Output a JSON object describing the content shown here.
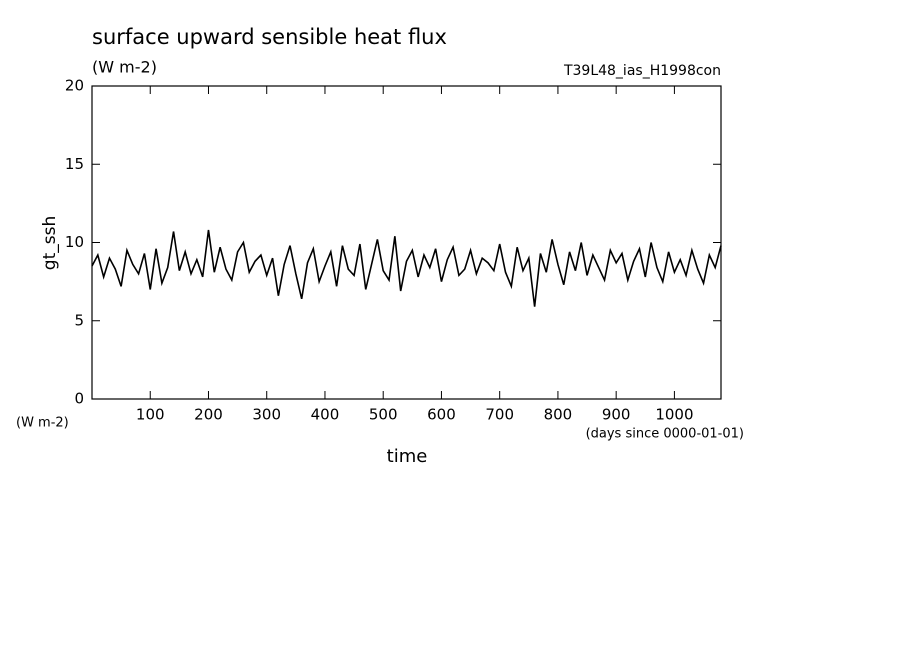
{
  "chart_data": {
    "type": "line",
    "title": "surface upward sensible heat flux",
    "subtitle": "(W m-2)",
    "annotation": "T39L48_ias_H1998con",
    "ylabel": "gt_ssh",
    "xlabel": "time",
    "xunits": "(days since 0000-01-01)",
    "yunits": "(W m-2)",
    "xlim": [
      0,
      1080
    ],
    "ylim": [
      0,
      20
    ],
    "xticks": [
      100,
      200,
      300,
      400,
      500,
      600,
      700,
      800,
      900,
      1000
    ],
    "yticks": [
      0,
      5,
      10,
      15,
      20
    ],
    "series": [
      {
        "color": "#000000",
        "x": [
          0,
          10,
          20,
          30,
          40,
          50,
          60,
          70,
          80,
          90,
          100,
          110,
          120,
          130,
          140,
          150,
          160,
          170,
          180,
          190,
          200,
          210,
          220,
          230,
          240,
          250,
          260,
          270,
          280,
          290,
          300,
          310,
          320,
          330,
          340,
          350,
          360,
          370,
          380,
          390,
          400,
          410,
          420,
          430,
          440,
          450,
          460,
          470,
          480,
          490,
          500,
          510,
          520,
          530,
          540,
          550,
          560,
          570,
          580,
          590,
          600,
          610,
          620,
          630,
          640,
          650,
          660,
          670,
          680,
          690,
          700,
          710,
          720,
          730,
          740,
          750,
          760,
          770,
          780,
          790,
          800,
          810,
          820,
          830,
          840,
          850,
          860,
          870,
          880,
          890,
          900,
          910,
          920,
          930,
          940,
          950,
          960,
          970,
          980,
          990,
          1000,
          1010,
          1020,
          1030,
          1040,
          1050,
          1060,
          1070,
          1080
        ],
        "values": [
          8.5,
          9.2,
          7.8,
          9.0,
          8.3,
          7.2,
          9.5,
          8.6,
          8.0,
          9.3,
          7.0,
          9.6,
          7.4,
          8.4,
          10.7,
          8.2,
          9.4,
          8.0,
          8.9,
          7.8,
          10.8,
          8.1,
          9.7,
          8.3,
          7.6,
          9.4,
          10.0,
          8.1,
          8.8,
          9.2,
          7.9,
          9.0,
          6.6,
          8.6,
          9.8,
          8.0,
          6.4,
          8.7,
          9.6,
          7.5,
          8.5,
          9.4,
          7.2,
          9.8,
          8.3,
          7.9,
          9.9,
          7.0,
          8.6,
          10.2,
          8.2,
          7.6,
          10.4,
          6.9,
          8.8,
          9.5,
          7.8,
          9.2,
          8.4,
          9.6,
          7.5,
          8.9,
          9.7,
          7.9,
          8.3,
          9.5,
          8.0,
          9.0,
          8.7,
          8.2,
          9.9,
          8.1,
          7.2,
          9.7,
          8.2,
          9.0,
          5.9,
          9.3,
          8.1,
          10.2,
          8.6,
          7.3,
          9.4,
          8.2,
          10.0,
          7.9,
          9.2,
          8.4,
          7.6,
          9.5,
          8.7,
          9.3,
          7.6,
          8.8,
          9.6,
          7.8,
          10.0,
          8.4,
          7.5,
          9.4,
          8.1,
          8.9,
          7.9,
          9.5,
          8.3,
          7.4,
          9.2,
          8.4,
          9.8
        ]
      }
    ]
  }
}
